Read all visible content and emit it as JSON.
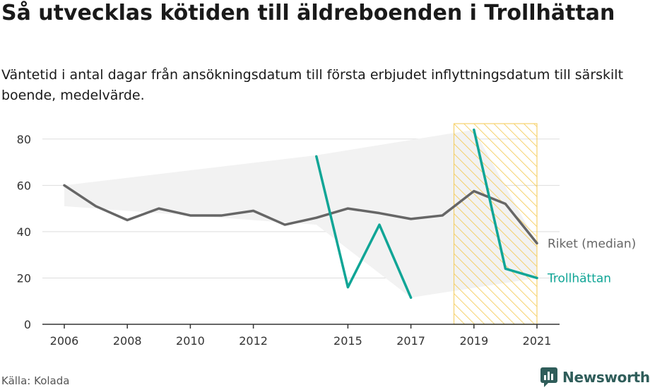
{
  "title": "Så utvecklas kötiden till äldreboenden i Trollhättan",
  "subtitle": "Väntetid i antal dagar från ansökningsdatum till första erbjudet inflyttningsdatum till särskilt boende, medelvärde.",
  "source": "Källa: Kolada",
  "brand": {
    "name": "Newsworthy",
    "icon": "newsworthy-logo-icon",
    "color": "#2f5d5a"
  },
  "chart_data": {
    "type": "line",
    "xlim": [
      2006,
      2021
    ],
    "ylim": [
      0,
      90
    ],
    "yticks": [
      0,
      20,
      40,
      60,
      80
    ],
    "xticks": [
      2006,
      2008,
      2010,
      2012,
      2015,
      2017,
      2019,
      2021
    ],
    "grid": true,
    "highlight_range": [
      2018.5,
      2021
    ],
    "series": [
      {
        "name": "Riket (median)",
        "color": "#666666",
        "points": [
          [
            2006,
            60
          ],
          [
            2007,
            51
          ],
          [
            2008,
            45
          ],
          [
            2009,
            50
          ],
          [
            2010,
            47
          ],
          [
            2011,
            47
          ],
          [
            2012,
            49
          ],
          [
            2013,
            43
          ],
          [
            2014,
            46
          ],
          [
            2015,
            50
          ],
          [
            2016,
            48
          ],
          [
            2017,
            45.5
          ],
          [
            2018,
            47
          ],
          [
            2019,
            57.5
          ],
          [
            2020,
            52
          ],
          [
            2021,
            35
          ]
        ]
      },
      {
        "name": "Trollhättan",
        "color": "#10a596",
        "points": [
          [
            2014,
            72.5
          ],
          [
            2015,
            16
          ],
          [
            2016,
            43
          ],
          [
            2017,
            11.5
          ],
          [
            2018,
            null
          ],
          [
            2019,
            84
          ],
          [
            2020,
            24
          ],
          [
            2021,
            20
          ]
        ]
      }
    ],
    "band": {
      "color": "#f2f2f2",
      "upper": [
        [
          2006,
          60
        ],
        [
          2014,
          73
        ],
        [
          2019,
          84
        ],
        [
          2021,
          35
        ]
      ],
      "lower": [
        [
          2021,
          20
        ],
        [
          2017,
          11.5
        ],
        [
          2014,
          43
        ],
        [
          2006,
          51
        ]
      ]
    },
    "highlight_color": "#f5c84a"
  }
}
